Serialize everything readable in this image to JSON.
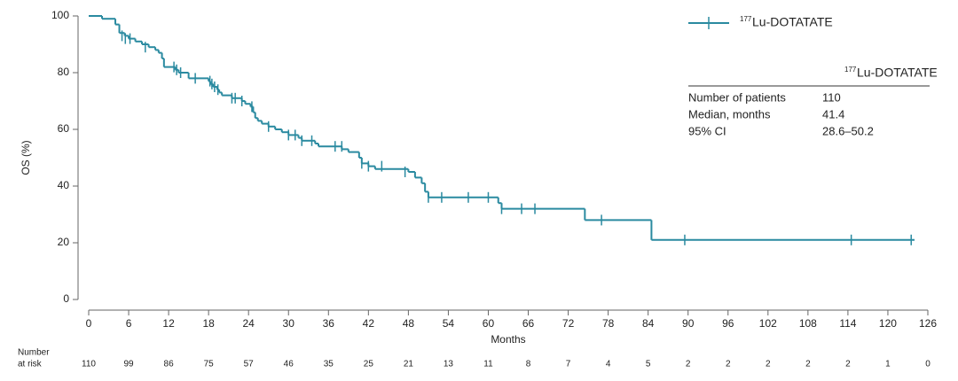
{
  "chart_data": {
    "type": "step",
    "ylabel": "OS (%)",
    "xlabel": "Months",
    "xlim": [
      0,
      126
    ],
    "ylim": [
      0,
      100
    ],
    "xticks": [
      0,
      6,
      12,
      18,
      24,
      30,
      36,
      42,
      48,
      54,
      60,
      66,
      72,
      78,
      84,
      90,
      96,
      102,
      108,
      114,
      120,
      126
    ],
    "yticks": [
      0,
      20,
      40,
      60,
      80,
      100
    ],
    "series": [
      {
        "name": "Lu-DOTATATE",
        "name_superscript": "177",
        "color": "#2a8aa0",
        "x": [
          0,
          2,
          4,
          4.6,
          5.4,
          6,
          7,
          8,
          9,
          10,
          10.5,
          11,
          11.3,
          13,
          13.5,
          15,
          18,
          18.3,
          18.7,
          19.3,
          19.6,
          20,
          21.5,
          23,
          23.5,
          24.3,
          24.7,
          25,
          25.4,
          26,
          27,
          28,
          29,
          30,
          31.5,
          32,
          34,
          34.5,
          38,
          39,
          40.6,
          41,
          42,
          43,
          48,
          49,
          50,
          50.5,
          51,
          61.5,
          62,
          74.5,
          84.5,
          124
        ],
        "values": [
          100,
          99,
          97,
          94,
          93,
          92,
          91,
          90,
          89,
          88,
          87,
          85,
          82,
          81,
          80,
          78,
          77,
          76,
          75,
          74,
          73,
          72,
          71,
          70,
          69,
          68,
          66,
          64,
          63,
          62,
          61,
          60,
          59,
          58,
          57,
          56,
          55,
          54,
          53,
          52,
          50,
          48,
          47,
          46,
          45,
          43,
          41,
          38,
          36,
          34,
          32,
          28,
          21,
          21
        ],
        "censored": {
          "x": [
            5,
            5.5,
            6.2,
            8.5,
            12.8,
            13.2,
            13.8,
            16,
            18.2,
            18.5,
            18.9,
            19.4,
            21.5,
            22,
            23,
            24.5,
            27,
            30,
            31,
            32,
            33.5,
            37,
            38,
            41,
            42,
            44,
            47.5,
            51,
            53,
            57,
            60,
            62,
            65,
            67,
            77,
            89.5,
            114.5,
            123.5
          ],
          "values": [
            93,
            92,
            92,
            89,
            82,
            81,
            80,
            78,
            77,
            76,
            75,
            74,
            71,
            71,
            70,
            68,
            61,
            58,
            58,
            56,
            56,
            54,
            54,
            48,
            47,
            47,
            45,
            36,
            36,
            36,
            36,
            32,
            32,
            32,
            28,
            21,
            21,
            21
          ]
        }
      }
    ],
    "summary_table": {
      "header_superscript": "177",
      "header": "Lu-DOTATATE",
      "rows": [
        [
          "Number of patients",
          "110"
        ],
        [
          "Median, months",
          "41.4"
        ],
        [
          "95% CI",
          "28.6–50.2"
        ]
      ]
    },
    "risk_table": {
      "label_lines": [
        "Number",
        "at risk"
      ],
      "values": [
        110,
        99,
        86,
        75,
        57,
        46,
        35,
        25,
        21,
        13,
        11,
        8,
        7,
        4,
        5,
        2,
        2,
        2,
        2,
        2,
        1,
        0
      ]
    }
  }
}
